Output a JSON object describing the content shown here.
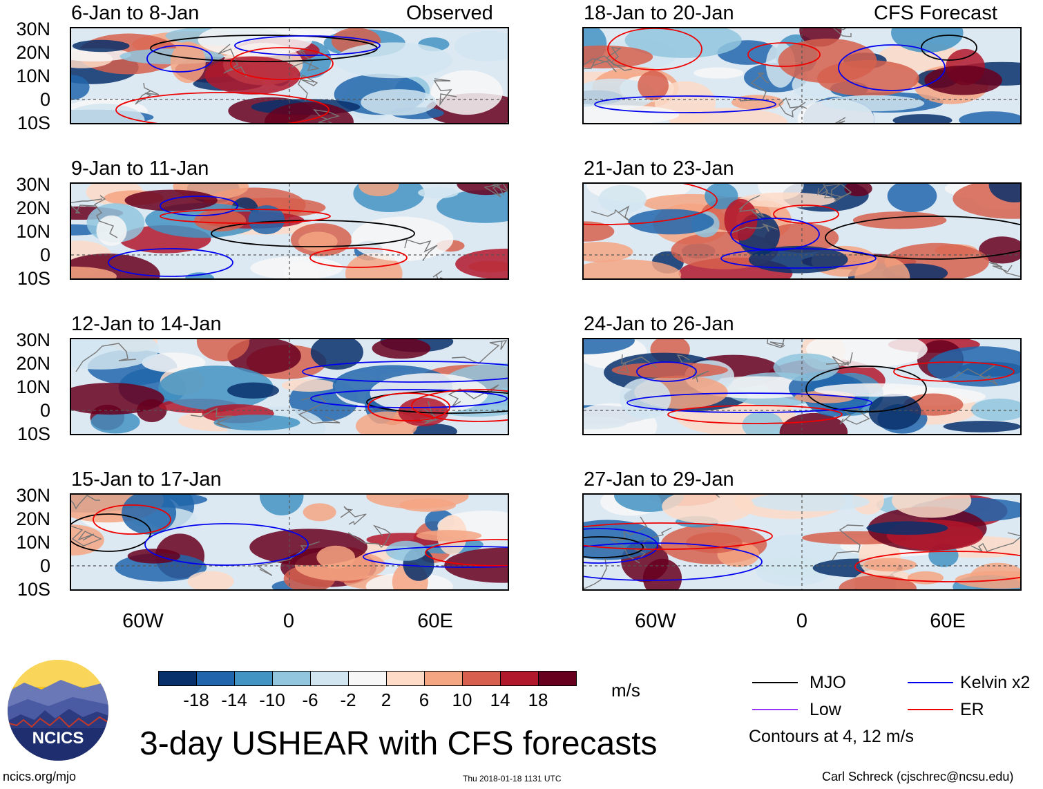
{
  "panels": [
    {
      "title": "6-Jan to 8-Jan",
      "tag": "Observed"
    },
    {
      "title": "18-Jan to 20-Jan",
      "tag": "CFS Forecast"
    },
    {
      "title": "9-Jan to 11-Jan",
      "tag": ""
    },
    {
      "title": "21-Jan to 23-Jan",
      "tag": ""
    },
    {
      "title": "12-Jan to 14-Jan",
      "tag": ""
    },
    {
      "title": "24-Jan to 26-Jan",
      "tag": ""
    },
    {
      "title": "15-Jan to 17-Jan",
      "tag": ""
    },
    {
      "title": "27-Jan to 29-Jan",
      "tag": ""
    }
  ],
  "lat_labels": [
    "30N",
    "20N",
    "10N",
    "0",
    "10S"
  ],
  "lon_labels": [
    "60W",
    "0",
    "60E"
  ],
  "colorbar": {
    "ticks": [
      "-18",
      "-14",
      "-10",
      "-6",
      "-2",
      "2",
      "6",
      "10",
      "14",
      "18"
    ],
    "units": "m/s",
    "colors": [
      "#08306b",
      "#2166ac",
      "#4393c3",
      "#92c5de",
      "#d1e5f0",
      "#f7f7f7",
      "#fddbc7",
      "#f4a582",
      "#d6604d",
      "#b2182b",
      "#67001f"
    ]
  },
  "legend": {
    "items": [
      {
        "label": "MJO",
        "color": "#000000"
      },
      {
        "label": "Kelvin x2",
        "color": "#0000ee"
      },
      {
        "label": "Low",
        "color": "#9933ff"
      },
      {
        "label": "ER",
        "color": "#ee0000"
      }
    ],
    "contours_note": "Contours at 4, 12 m/s"
  },
  "logo_text": "NCICS",
  "main_title": "3-day USHEAR with CFS forecasts",
  "footer": {
    "left": "ncics.org/mjo",
    "center": "Thu 2018-01-18 1131 UTC",
    "right": "Carl Schreck (cjschrec@ncsu.edu)"
  }
}
